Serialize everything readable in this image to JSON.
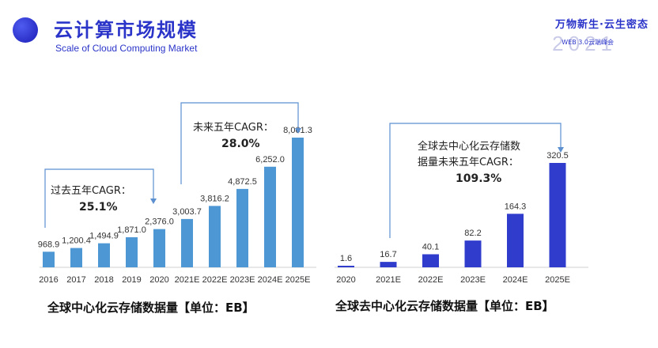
{
  "header": {
    "title_cn": "云计算市场规模",
    "title_en": "Scale of Cloud Computing Market",
    "brand_line1": "万物新生·云生密态",
    "brand_year": "2021",
    "brand_line2": "WEB 3.0云端峰会"
  },
  "colors": {
    "accent": "#2b34c9",
    "left_bar": "#4d97d4",
    "right_bar": "#2f3ccc",
    "bracket": "#5b8fd0"
  },
  "chart_data": [
    {
      "type": "bar",
      "categories": [
        "2016",
        "2017",
        "2018",
        "2019",
        "2020",
        "2021E",
        "2022E",
        "2023E",
        "2024E",
        "2025E"
      ],
      "values": [
        968.9,
        1200.4,
        1494.9,
        1871.0,
        2376.0,
        3003.7,
        3816.2,
        4872.5,
        6252.0,
        8061.3
      ],
      "value_labels": [
        "968.9",
        "1,200.4",
        "1,494.9",
        "1,871.0",
        "2,376.0",
        "3,003.7",
        "3,816.2",
        "4,872.5",
        "6,252.0",
        "8,061.3"
      ],
      "caption": "全球中心化云存储数据量【单位：EB】",
      "annotations": [
        {
          "text": "过去五年CAGR：",
          "value": "25.1%"
        },
        {
          "text": "未来五年CAGR：",
          "value": "28.0%"
        }
      ]
    },
    {
      "type": "bar",
      "categories": [
        "2020",
        "2021E",
        "2022E",
        "2023E",
        "2024E",
        "2025E"
      ],
      "values": [
        1.6,
        16.7,
        40.1,
        82.2,
        164.3,
        320.5
      ],
      "value_labels": [
        "1.6",
        "16.7",
        "40.1",
        "82.2",
        "164.3",
        "320.5"
      ],
      "caption": "全球去中心化云存储数据量【单位：EB】",
      "annotations": [
        {
          "text": "全球去中心化云存储数",
          "text2": "据量未来五年CAGR：",
          "value": "109.3%"
        }
      ]
    }
  ]
}
